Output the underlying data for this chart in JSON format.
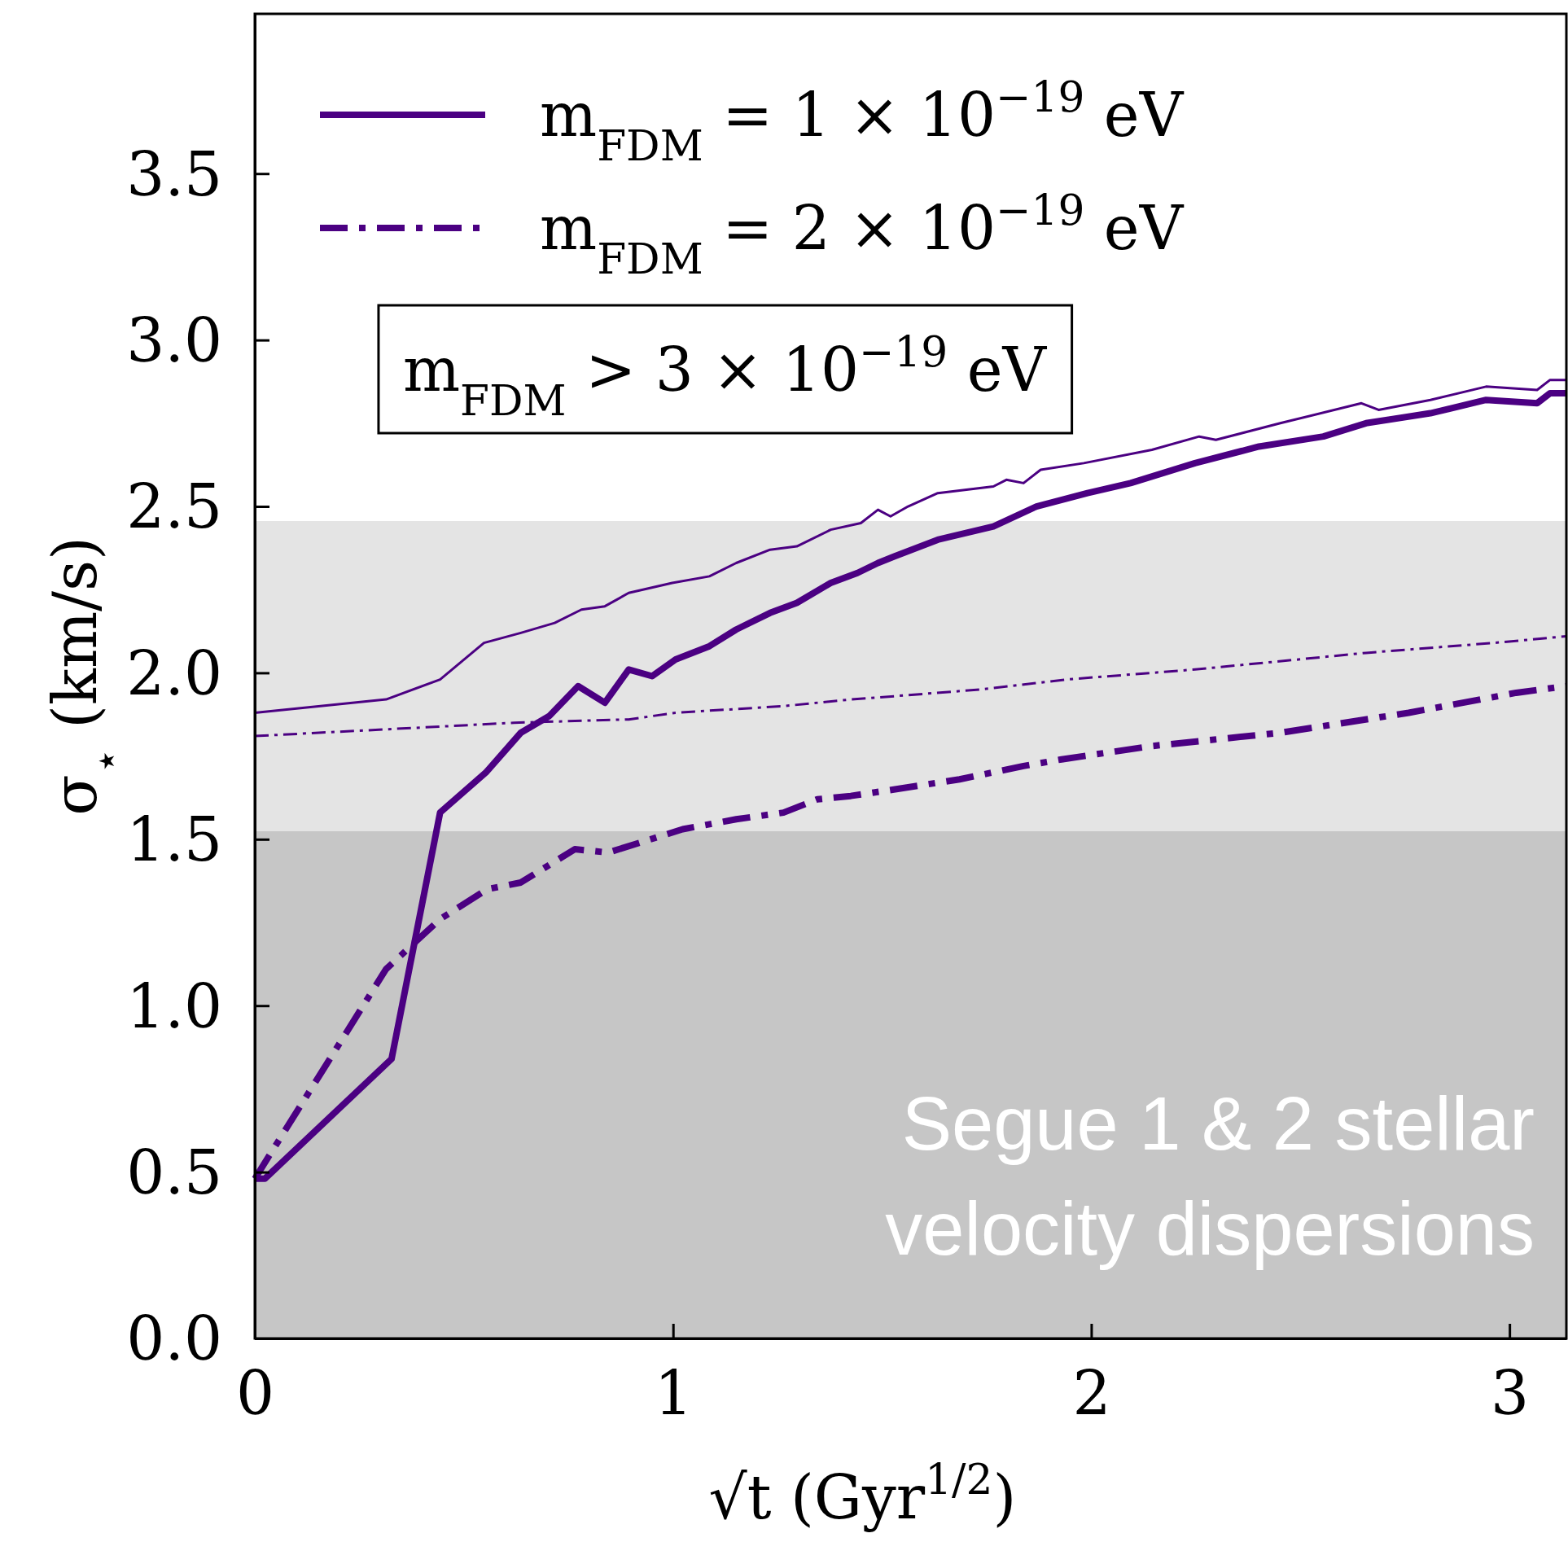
{
  "chart_data": {
    "type": "line",
    "xlabel": "√t (Gyr$^{1/2}$)",
    "ylabel": "σ$_{⋆}$ (km/s)",
    "xlim": [
      0,
      3.136
    ],
    "ylim": [
      0,
      3.98
    ],
    "xticks": [
      0,
      1,
      2,
      3
    ],
    "yticks": [
      {
        "value": 0,
        "label": "0.0"
      },
      0.5,
      {
        "value": 1,
        "label": "1.0"
      },
      1.5,
      {
        "value": 2,
        "label": "2.0"
      },
      2.5,
      {
        "value": 3,
        "label": "3.0"
      },
      3.5
    ],
    "legend": "top left",
    "bands": [
      {
        "axis": "y",
        "from": 0,
        "to": 1.524,
        "color": "#c6c6c6",
        "label": "Segue 1 & 2 stellar velocity dispersions"
      },
      {
        "axis": "y",
        "from": 1.524,
        "to": 2.456,
        "color": "#e4e4e4"
      }
    ],
    "annotations": [
      "m$_{FDM}$ > 3 × 10$^{−19}$ eV"
    ],
    "series": [
      {
        "name": "m$_{FDM}$ = 1 × 10$^{−19}$ eV",
        "color": "#4b0082",
        "line_style": "solid",
        "x": [
          0,
          0.024,
          0.327,
          0.443,
          0.552,
          0.636,
          0.704,
          0.773,
          0.837,
          0.894,
          0.95,
          1.006,
          1.087,
          1.151,
          1.232,
          1.296,
          1.377,
          1.441,
          1.49,
          1.53,
          1.633,
          1.766,
          1.869,
          1.991,
          2.094,
          2.248,
          2.401,
          2.555,
          2.657,
          2.811,
          2.944,
          3.066,
          3.097,
          3.136
        ],
        "values": [
          0.48,
          0.48,
          0.84,
          1.58,
          1.7,
          1.82,
          1.87,
          1.96,
          1.91,
          2.01,
          1.99,
          2.04,
          2.08,
          2.13,
          2.18,
          2.21,
          2.27,
          2.3,
          2.33,
          2.35,
          2.4,
          2.44,
          2.5,
          2.54,
          2.57,
          2.63,
          2.68,
          2.71,
          2.75,
          2.78,
          2.82,
          2.81,
          2.84,
          2.84
        ]
      },
      {
        "name": "m$_{FDM}$ = 2 × 10$^{−19}$ eV",
        "color": "#4b0082",
        "line_style": "dashdot",
        "x": [
          0,
          0.314,
          0.443,
          0.556,
          0.636,
          0.765,
          0.845,
          1.023,
          1.151,
          1.264,
          1.345,
          1.425,
          1.531,
          1.685,
          1.838,
          1.929,
          2.145,
          2.452,
          2.759,
          3.016,
          3.136
        ],
        "values": [
          0.48,
          1.11,
          1.26,
          1.35,
          1.37,
          1.47,
          1.46,
          1.53,
          1.56,
          1.58,
          1.62,
          1.63,
          1.65,
          1.68,
          1.72,
          1.74,
          1.78,
          1.82,
          1.88,
          1.94,
          1.96
        ]
      },
      {
        "color": "#4b0082",
        "line_style": "solid",
        "x": [
          0,
          0.314,
          0.443,
          0.548,
          0.636,
          0.717,
          0.781,
          0.837,
          0.894,
          0.998,
          1.087,
          1.151,
          1.232,
          1.296,
          1.377,
          1.449,
          1.49,
          1.52,
          1.562,
          1.633,
          1.766,
          1.797,
          1.838,
          1.879,
          1.982,
          2.145,
          2.258,
          2.298,
          2.452,
          2.646,
          2.687,
          2.811,
          2.944,
          3.066,
          3.097,
          3.136
        ],
        "values": [
          1.88,
          1.92,
          1.98,
          2.09,
          2.12,
          2.15,
          2.19,
          2.2,
          2.24,
          2.27,
          2.29,
          2.33,
          2.37,
          2.38,
          2.43,
          2.45,
          2.49,
          2.47,
          2.5,
          2.54,
          2.56,
          2.58,
          2.57,
          2.61,
          2.63,
          2.67,
          2.71,
          2.7,
          2.75,
          2.81,
          2.79,
          2.82,
          2.86,
          2.85,
          2.88,
          2.88
        ]
      },
      {
        "color": "#4b0082",
        "line_style": "dashdot",
        "x": [
          0,
          0.62,
          0.894,
          1.006,
          1.135,
          1.264,
          1.425,
          1.531,
          1.735,
          1.941,
          2.248,
          2.657,
          2.964,
          3.136
        ],
        "values": [
          1.81,
          1.85,
          1.86,
          1.88,
          1.89,
          1.9,
          1.92,
          1.93,
          1.95,
          1.98,
          2.01,
          2.06,
          2.09,
          2.11
        ]
      }
    ]
  }
}
